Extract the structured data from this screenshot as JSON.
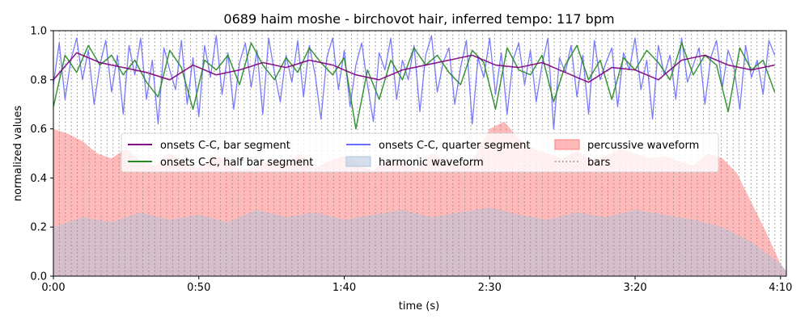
{
  "chart_data": {
    "type": "line",
    "title": "0689 haim moshe - birchovot hair, inferred tempo: 117 bpm",
    "xlabel": "time (s)",
    "ylabel": "normalized values",
    "xlim": [
      0,
      252
    ],
    "ylim": [
      0,
      1.0
    ],
    "x_ticks": [
      {
        "value": 0,
        "label": "0:00"
      },
      {
        "value": 50,
        "label": "0:50"
      },
      {
        "value": 100,
        "label": "1:40"
      },
      {
        "value": 150,
        "label": "2:30"
      },
      {
        "value": 200,
        "label": "3:20"
      },
      {
        "value": 250,
        "label": "4:10"
      }
    ],
    "y_ticks": [
      {
        "value": 0.0,
        "label": "0.0"
      },
      {
        "value": 0.2,
        "label": "0.2"
      },
      {
        "value": 0.4,
        "label": "0.4"
      },
      {
        "value": 0.6,
        "label": "0.6"
      },
      {
        "value": 0.8,
        "label": "0.8"
      },
      {
        "value": 1.0,
        "label": "1.0"
      }
    ],
    "tempo_bpm": 117,
    "bar_duration_s": 2.05,
    "legend": {
      "placement": "center",
      "entries": [
        {
          "label": "onsets C-C, bar segment",
          "kind": "line",
          "color": "#800080"
        },
        {
          "label": "onsets C-C, half bar segment",
          "kind": "line",
          "color": "#228b22"
        },
        {
          "label": "onsets C-C, quarter segment",
          "kind": "line",
          "color": "#6b6bff"
        },
        {
          "label": "harmonic waveform",
          "kind": "patch",
          "color": "#b0c4de"
        },
        {
          "label": "percussive waveform",
          "kind": "patch",
          "color": "#ff7f7f"
        },
        {
          "label": "bars",
          "kind": "dotted",
          "color": "#808080"
        }
      ]
    },
    "series": [
      {
        "name": "onsets C-C, bar segment",
        "color": "#800080",
        "x": [
          0,
          8,
          16,
          24,
          32,
          40,
          48,
          56,
          64,
          72,
          80,
          88,
          96,
          104,
          112,
          120,
          128,
          136,
          144,
          152,
          160,
          168,
          176,
          184,
          192,
          200,
          208,
          216,
          224,
          232,
          240,
          248
        ],
        "y": [
          0.8,
          0.91,
          0.87,
          0.85,
          0.83,
          0.8,
          0.86,
          0.82,
          0.84,
          0.87,
          0.85,
          0.88,
          0.86,
          0.82,
          0.8,
          0.84,
          0.86,
          0.88,
          0.9,
          0.86,
          0.85,
          0.87,
          0.83,
          0.79,
          0.85,
          0.84,
          0.8,
          0.88,
          0.9,
          0.86,
          0.84,
          0.86
        ]
      },
      {
        "name": "onsets C-C, half bar segment",
        "color": "#228b22",
        "x": [
          0,
          4,
          8,
          12,
          16,
          20,
          24,
          28,
          32,
          36,
          40,
          44,
          48,
          52,
          56,
          60,
          64,
          68,
          72,
          76,
          80,
          84,
          88,
          92,
          96,
          100,
          104,
          108,
          112,
          116,
          120,
          124,
          128,
          132,
          136,
          140,
          144,
          148,
          152,
          156,
          160,
          164,
          168,
          172,
          176,
          180,
          184,
          188,
          192,
          196,
          200,
          204,
          208,
          212,
          216,
          220,
          224,
          228,
          232,
          236,
          240,
          244,
          248
        ],
        "y": [
          0.69,
          0.9,
          0.83,
          0.94,
          0.86,
          0.9,
          0.82,
          0.88,
          0.79,
          0.73,
          0.92,
          0.85,
          0.68,
          0.88,
          0.84,
          0.9,
          0.78,
          0.95,
          0.86,
          0.8,
          0.89,
          0.83,
          0.93,
          0.87,
          0.82,
          0.89,
          0.6,
          0.84,
          0.72,
          0.88,
          0.8,
          0.93,
          0.86,
          0.9,
          0.83,
          0.78,
          0.92,
          0.87,
          0.68,
          0.93,
          0.84,
          0.82,
          0.9,
          0.71,
          0.86,
          0.94,
          0.8,
          0.88,
          0.72,
          0.89,
          0.84,
          0.92,
          0.87,
          0.8,
          0.95,
          0.82,
          0.9,
          0.86,
          0.67,
          0.93,
          0.84,
          0.88,
          0.75
        ]
      },
      {
        "name": "onsets C-C, quarter segment",
        "color": "#6b6bff",
        "x": [
          0,
          2,
          4,
          6,
          8,
          10,
          12,
          14,
          16,
          18,
          20,
          22,
          24,
          26,
          28,
          30,
          32,
          34,
          36,
          38,
          40,
          42,
          44,
          46,
          48,
          50,
          52,
          54,
          56,
          58,
          60,
          62,
          64,
          66,
          68,
          70,
          72,
          74,
          76,
          78,
          80,
          82,
          84,
          86,
          88,
          90,
          92,
          94,
          96,
          98,
          100,
          102,
          104,
          106,
          108,
          110,
          112,
          114,
          116,
          118,
          120,
          122,
          124,
          126,
          128,
          130,
          132,
          134,
          136,
          138,
          140,
          142,
          144,
          146,
          148,
          150,
          152,
          154,
          156,
          158,
          160,
          162,
          164,
          166,
          168,
          170,
          172,
          174,
          176,
          178,
          180,
          182,
          184,
          186,
          188,
          190,
          192,
          194,
          196,
          198,
          200,
          202,
          204,
          206,
          208,
          210,
          212,
          214,
          216,
          218,
          220,
          222,
          224,
          226,
          228,
          230,
          232,
          234,
          236,
          238,
          240,
          242,
          244,
          246,
          248
        ],
        "y": [
          0.78,
          0.95,
          0.72,
          0.88,
          0.97,
          0.8,
          0.92,
          0.7,
          0.86,
          0.96,
          0.75,
          0.9,
          0.66,
          0.94,
          0.82,
          0.97,
          0.72,
          0.88,
          0.62,
          0.93,
          0.84,
          0.76,
          0.96,
          0.7,
          0.89,
          0.65,
          0.94,
          0.81,
          0.98,
          0.74,
          0.91,
          0.68,
          0.87,
          0.95,
          0.77,
          0.92,
          0.66,
          0.97,
          0.83,
          0.71,
          0.9,
          0.79,
          0.96,
          0.73,
          0.94,
          0.82,
          0.64,
          0.89,
          0.97,
          0.76,
          0.92,
          0.69,
          0.86,
          0.95,
          0.78,
          0.63,
          0.91,
          0.84,
          0.97,
          0.72,
          0.88,
          0.8,
          0.94,
          0.67,
          0.9,
          0.98,
          0.75,
          0.87,
          0.93,
          0.7,
          0.85,
          0.96,
          0.62,
          0.89,
          0.81,
          0.97,
          0.74,
          0.91,
          0.66,
          0.88,
          0.95,
          0.78,
          0.92,
          0.71,
          0.86,
          0.97,
          0.6,
          0.89,
          0.83,
          0.94,
          0.73,
          0.9,
          0.66,
          0.96,
          0.8,
          0.87,
          0.93,
          0.69,
          0.91,
          0.84,
          0.97,
          0.76,
          0.88,
          0.64,
          0.94,
          0.82,
          0.9,
          0.72,
          0.97,
          0.79,
          0.86,
          0.93,
          0.7,
          0.89,
          0.96,
          0.77,
          0.92,
          0.85,
          0.68,
          0.94,
          0.81,
          0.88,
          0.74,
          0.96,
          0.9
        ]
      },
      {
        "name": "percussive waveform",
        "kind": "area",
        "color": "#ff7f7f",
        "x": [
          0,
          5,
          10,
          15,
          20,
          25,
          30,
          35,
          40,
          45,
          50,
          55,
          60,
          65,
          70,
          75,
          80,
          85,
          90,
          95,
          100,
          105,
          110,
          115,
          120,
          125,
          130,
          135,
          140,
          145,
          150,
          155,
          160,
          165,
          170,
          175,
          180,
          185,
          190,
          195,
          200,
          205,
          210,
          215,
          220,
          225,
          230,
          235,
          240,
          245,
          250,
          252
        ],
        "y": [
          0.6,
          0.58,
          0.55,
          0.5,
          0.48,
          0.52,
          0.47,
          0.45,
          0.5,
          0.46,
          0.44,
          0.49,
          0.47,
          0.43,
          0.45,
          0.48,
          0.46,
          0.5,
          0.44,
          0.47,
          0.49,
          0.45,
          0.43,
          0.48,
          0.46,
          0.44,
          0.5,
          0.47,
          0.45,
          0.49,
          0.6,
          0.63,
          0.56,
          0.52,
          0.5,
          0.48,
          0.51,
          0.47,
          0.49,
          0.52,
          0.5,
          0.48,
          0.49,
          0.47,
          0.45,
          0.5,
          0.48,
          0.42,
          0.3,
          0.18,
          0.05,
          0.02
        ]
      },
      {
        "name": "harmonic waveform",
        "kind": "area",
        "color": "#b0c4de",
        "x": [
          0,
          10,
          20,
          30,
          40,
          50,
          60,
          70,
          80,
          90,
          100,
          110,
          120,
          130,
          140,
          150,
          160,
          170,
          180,
          190,
          200,
          210,
          220,
          230,
          240,
          250,
          252
        ],
        "y": [
          0.2,
          0.24,
          0.22,
          0.26,
          0.23,
          0.25,
          0.22,
          0.27,
          0.24,
          0.26,
          0.23,
          0.25,
          0.27,
          0.24,
          0.26,
          0.28,
          0.25,
          0.23,
          0.26,
          0.24,
          0.27,
          0.25,
          0.23,
          0.2,
          0.14,
          0.05,
          0.02
        ]
      }
    ]
  }
}
